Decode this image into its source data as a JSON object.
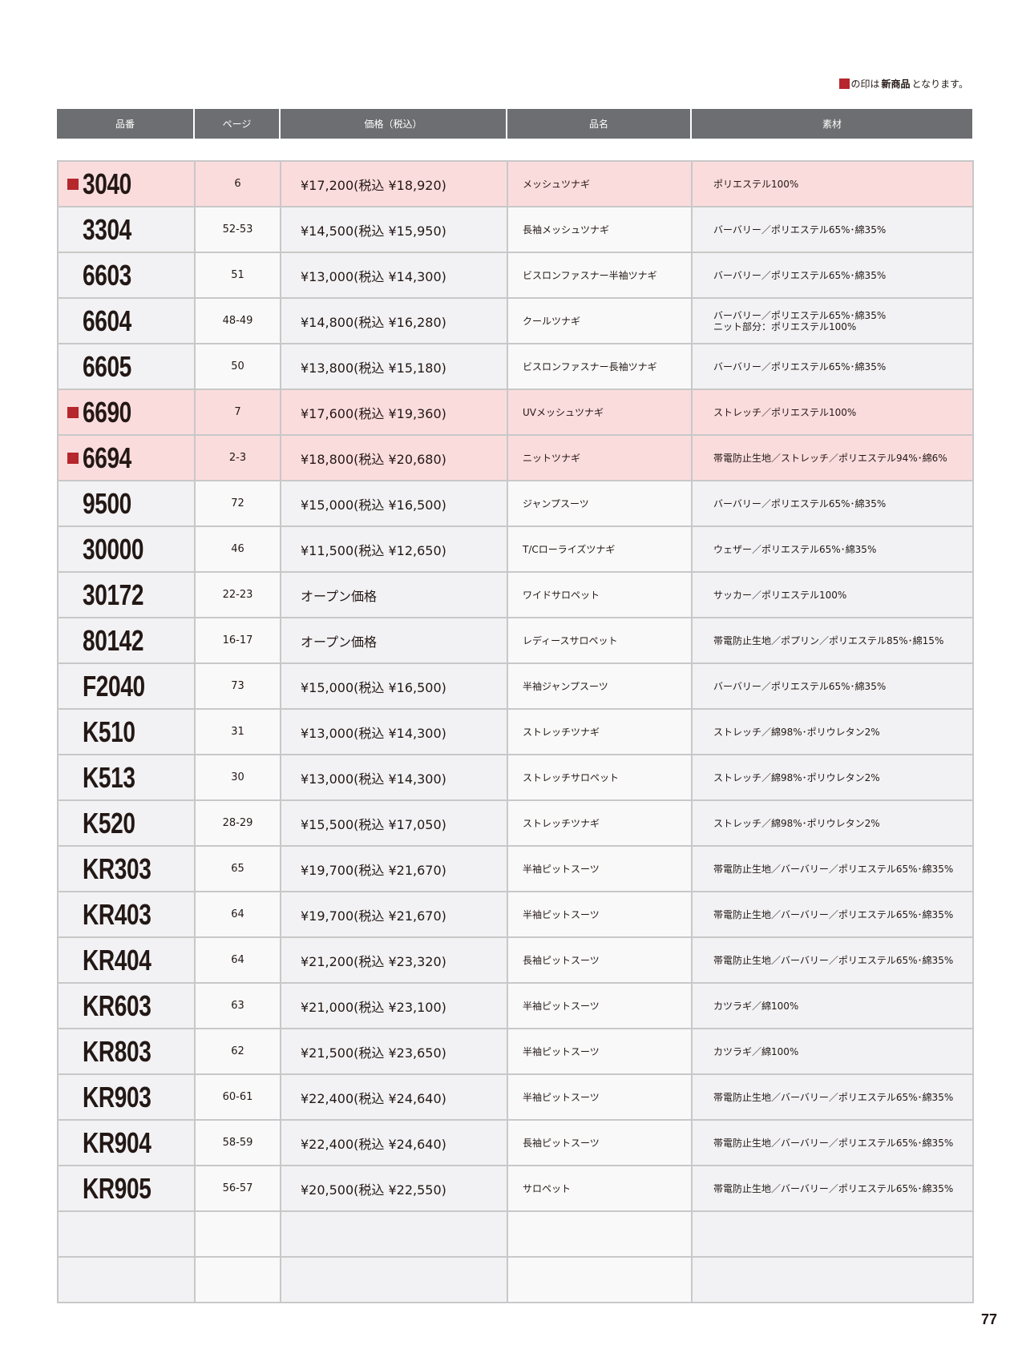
{
  "legend": {
    "pre": "の印は",
    "bold": "新商品",
    "post": "となります。",
    "mark_color": "#b5262d"
  },
  "headers": [
    "品番",
    "ページ",
    "価格（税込）",
    "品名",
    "素材"
  ],
  "rows": [
    {
      "code": "3040",
      "page": "6",
      "price": "¥17,200(税込 ¥18,920)",
      "name": "メッシュツナギ",
      "material": "ポリエステル100%",
      "new": true
    },
    {
      "code": "3304",
      "page": "52-53",
      "price": "¥14,500(税込 ¥15,950)",
      "name": "長袖メッシュツナギ",
      "material": "バーバリー／ポリエステル65%･綿35%",
      "new": false
    },
    {
      "code": "6603",
      "page": "51",
      "price": "¥13,000(税込 ¥14,300)",
      "name": "ビスロンファスナー半袖ツナギ",
      "material": "バーバリー／ポリエステル65%･綿35%",
      "new": false
    },
    {
      "code": "6604",
      "page": "48-49",
      "price": "¥14,800(税込 ¥16,280)",
      "name": "クールツナギ",
      "material": "バーバリー／ポリエステル65%･綿35%",
      "material2": "ニット部分：ポリエステル100%",
      "new": false
    },
    {
      "code": "6605",
      "page": "50",
      "price": "¥13,800(税込 ¥15,180)",
      "name": "ビスロンファスナー長袖ツナギ",
      "material": "バーバリー／ポリエステル65%･綿35%",
      "new": false
    },
    {
      "code": "6690",
      "page": "7",
      "price": "¥17,600(税込 ¥19,360)",
      "name": "UVメッシュツナギ",
      "material": "ストレッチ／ポリエステル100%",
      "new": true
    },
    {
      "code": "6694",
      "page": "2-3",
      "price": "¥18,800(税込 ¥20,680)",
      "name": "ニットツナギ",
      "material": "帯電防止生地／ストレッチ／ポリエステル94%･綿6%",
      "new": true
    },
    {
      "code": "9500",
      "page": "72",
      "price": "¥15,000(税込 ¥16,500)",
      "name": "ジャンプスーツ",
      "material": "バーバリー／ポリエステル65%･綿35%",
      "new": false
    },
    {
      "code": "30000",
      "page": "46",
      "price": "¥11,500(税込 ¥12,650)",
      "name": "T/Cローライズツナギ",
      "material": "ウェザー／ポリエステル65%･綿35%",
      "new": false
    },
    {
      "code": "30172",
      "page": "22-23",
      "price": "オープン価格",
      "name": "ワイドサロペット",
      "material": "サッカー／ポリエステル100%",
      "new": false
    },
    {
      "code": "80142",
      "page": "16-17",
      "price": "オープン価格",
      "name": "レディースサロペット",
      "material": "帯電防止生地／ポプリン／ポリエステル85%･綿15%",
      "new": false
    },
    {
      "code": "F2040",
      "page": "73",
      "price": "¥15,000(税込 ¥16,500)",
      "name": "半袖ジャンプスーツ",
      "material": "バーバリー／ポリエステル65%･綿35%",
      "new": false
    },
    {
      "code": "K510",
      "page": "31",
      "price": "¥13,000(税込 ¥14,300)",
      "name": "ストレッチツナギ",
      "material": "ストレッチ／綿98%･ポリウレタン2%",
      "new": false
    },
    {
      "code": "K513",
      "page": "30",
      "price": "¥13,000(税込 ¥14,300)",
      "name": "ストレッチサロペット",
      "material": "ストレッチ／綿98%･ポリウレタン2%",
      "new": false
    },
    {
      "code": "K520",
      "page": "28-29",
      "price": "¥15,500(税込 ¥17,050)",
      "name": "ストレッチツナギ",
      "material": "ストレッチ／綿98%･ポリウレタン2%",
      "new": false
    },
    {
      "code": "KR303",
      "page": "65",
      "price": "¥19,700(税込 ¥21,670)",
      "name": "半袖ピットスーツ",
      "material": "帯電防止生地／バーバリー／ポリエステル65%･綿35%",
      "new": false
    },
    {
      "code": "KR403",
      "page": "64",
      "price": "¥19,700(税込 ¥21,670)",
      "name": "半袖ピットスーツ",
      "material": "帯電防止生地／バーバリー／ポリエステル65%･綿35%",
      "new": false
    },
    {
      "code": "KR404",
      "page": "64",
      "price": "¥21,200(税込 ¥23,320)",
      "name": "長袖ピットスーツ",
      "material": "帯電防止生地／バーバリー／ポリエステル65%･綿35%",
      "new": false
    },
    {
      "code": "KR603",
      "page": "63",
      "price": "¥21,000(税込 ¥23,100)",
      "name": "半袖ピットスーツ",
      "material": "カツラギ／綿100%",
      "new": false
    },
    {
      "code": "KR803",
      "page": "62",
      "price": "¥21,500(税込 ¥23,650)",
      "name": "半袖ピットスーツ",
      "material": "カツラギ／綿100%",
      "new": false
    },
    {
      "code": "KR903",
      "page": "60-61",
      "price": "¥22,400(税込 ¥24,640)",
      "name": "半袖ピットスーツ",
      "material": "帯電防止生地／バーバリー／ポリエステル65%･綿35%",
      "new": false
    },
    {
      "code": "KR904",
      "page": "58-59",
      "price": "¥22,400(税込 ¥24,640)",
      "name": "長袖ピットスーツ",
      "material": "帯電防止生地／バーバリー／ポリエステル65%･綿35%",
      "new": false
    },
    {
      "code": "KR905",
      "page": "56-57",
      "price": "¥20,500(税込 ¥22,550)",
      "name": "サロペット",
      "material": "帯電防止生地／バーバリー／ポリエステル65%･綿35%",
      "new": false
    }
  ],
  "empty_rows": 2,
  "page_number": "77"
}
